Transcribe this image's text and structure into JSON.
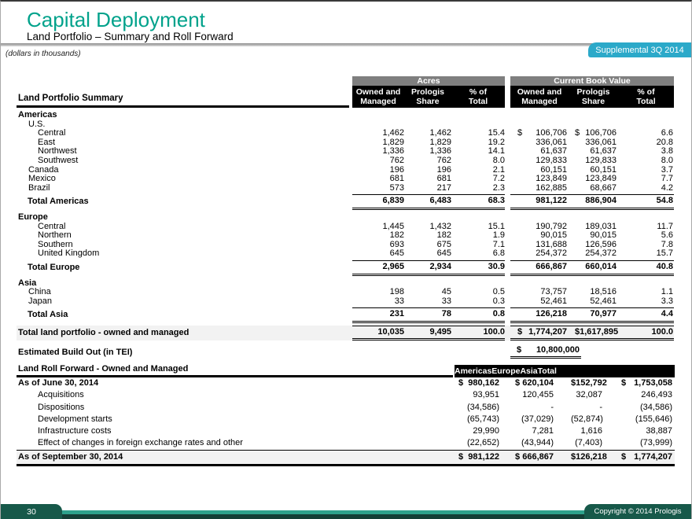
{
  "header": {
    "title": "Capital Deployment",
    "subtitle": "Land Portfolio – Summary and Roll Forward",
    "note": "(dollars in thousands)",
    "badge": "Supplemental 3Q 2014"
  },
  "colors": {
    "teal": "#00A28B",
    "badge_cyan": "#2BA9C9",
    "footer_green": "#17594A",
    "footer_line": "#2EA28C",
    "footer_strip": "#143F36",
    "header_gray": "#7F7F7F",
    "header_black": "#000000",
    "row_shade": "#F2F2F2"
  },
  "summary": {
    "section_title": "Land Portfolio Summary",
    "group_headers": {
      "acres": "Acres",
      "cbv": "Current Book Value"
    },
    "sub_headers": {
      "owned1": "Owned and",
      "owned2": "Managed",
      "share1": "Prologis",
      "share2": "Share",
      "pct1": "% of",
      "pct2": "Total"
    },
    "rows": [
      {
        "cls": "sec",
        "label": "Americas"
      },
      {
        "cls": "ind1",
        "label": "U.S."
      },
      {
        "cls": "ind2",
        "label": "Central",
        "a1": "1,462",
        "a2": "1,462",
        "a3": "15.4",
        "d1": "$",
        "c1": "106,706",
        "d2": "$",
        "c2": "106,706",
        "c3": "6.6"
      },
      {
        "cls": "ind2",
        "label": "East",
        "a1": "1,829",
        "a2": "1,829",
        "a3": "19.2",
        "c1": "336,061",
        "c2": "336,061",
        "c3": "20.8"
      },
      {
        "cls": "ind2",
        "label": "Northwest",
        "a1": "1,336",
        "a2": "1,336",
        "a3": "14.1",
        "c1": "61,637",
        "c2": "61,637",
        "c3": "3.8"
      },
      {
        "cls": "ind2",
        "label": "Southwest",
        "a1": "762",
        "a2": "762",
        "a3": "8.0",
        "c1": "129,833",
        "c2": "129,833",
        "c3": "8.0"
      },
      {
        "cls": "ind1",
        "label": "Canada",
        "a1": "196",
        "a2": "196",
        "a3": "2.1",
        "c1": "60,151",
        "c2": "60,151",
        "c3": "3.7"
      },
      {
        "cls": "ind1",
        "label": "Mexico",
        "a1": "681",
        "a2": "681",
        "a3": "7.2",
        "c1": "123,849",
        "c2": "123,849",
        "c3": "7.7"
      },
      {
        "cls": "ind1",
        "label": "Brazil",
        "a1": "573",
        "a2": "217",
        "a3": "2.3",
        "c1": "162,885",
        "c2": "68,667",
        "c3": "4.2"
      },
      {
        "cls": "total",
        "label": "Total Americas",
        "a1": "6,839",
        "a2": "6,483",
        "a3": "68.3",
        "c1": "981,122",
        "c2": "886,904",
        "c3": "54.8"
      },
      {
        "cls": "sec",
        "label": "Europe"
      },
      {
        "cls": "ind2",
        "label": "Central",
        "a1": "1,445",
        "a2": "1,432",
        "a3": "15.1",
        "c1": "190,792",
        "c2": "189,031",
        "c3": "11.7"
      },
      {
        "cls": "ind2",
        "label": "Northern",
        "a1": "182",
        "a2": "182",
        "a3": "1.9",
        "c1": "90,015",
        "c2": "90,015",
        "c3": "5.6"
      },
      {
        "cls": "ind2",
        "label": "Southern",
        "a1": "693",
        "a2": "675",
        "a3": "7.1",
        "c1": "131,688",
        "c2": "126,596",
        "c3": "7.8"
      },
      {
        "cls": "ind2",
        "label": "United Kingdom",
        "a1": "645",
        "a2": "645",
        "a3": "6.8",
        "c1": "254,372",
        "c2": "254,372",
        "c3": "15.7"
      },
      {
        "cls": "total",
        "label": "Total Europe",
        "a1": "2,965",
        "a2": "2,934",
        "a3": "30.9",
        "c1": "666,867",
        "c2": "660,014",
        "c3": "40.8"
      },
      {
        "cls": "sec",
        "label": "Asia"
      },
      {
        "cls": "ind1",
        "label": "China",
        "a1": "198",
        "a2": "45",
        "a3": "0.5",
        "c1": "73,757",
        "c2": "18,516",
        "c3": "1.1"
      },
      {
        "cls": "ind1",
        "label": "Japan",
        "a1": "33",
        "a2": "33",
        "a3": "0.3",
        "c1": "52,461",
        "c2": "52,461",
        "c3": "3.3"
      },
      {
        "cls": "total",
        "label": "Total Asia",
        "a1": "231",
        "a2": "78",
        "a3": "0.8",
        "c1": "126,218",
        "c2": "70,977",
        "c3": "4.4"
      },
      {
        "cls": "grand",
        "label": "Total land portfolio - owned and managed",
        "a1": "10,035",
        "a2": "9,495",
        "a3": "100.0",
        "d1": "$",
        "c1": "1,774,207",
        "d2": "$",
        "c2": "1,617,895",
        "c3": "100.0"
      }
    ],
    "build_out": {
      "label": "Estimated Build Out (in TEI)",
      "dollar": "$",
      "value": "10,800,000"
    }
  },
  "rollforward": {
    "section_title": "Land Roll Forward - Owned and Managed",
    "columns": [
      {
        "label": "Americas"
      },
      {
        "label": "Europe"
      },
      {
        "label": "Asia"
      },
      {
        "label": "Total"
      }
    ],
    "rows": [
      {
        "cls": "b",
        "label": "As of June 30, 2014",
        "d0": "$",
        "d1": "$",
        "d2": "$",
        "d3": "$",
        "v": [
          "980,162",
          "620,104",
          "152,792",
          "1,753,058"
        ]
      },
      {
        "cls": "ind",
        "label": "Acquisitions",
        "v": [
          "93,951",
          "120,455",
          "32,087",
          "246,493"
        ]
      },
      {
        "cls": "ind",
        "label": "Dispositions",
        "v": [
          "(34,586)",
          "-",
          "-",
          "(34,586)"
        ]
      },
      {
        "cls": "ind",
        "label": "Development starts",
        "v": [
          "(65,743)",
          "(37,029)",
          "(52,874)",
          "(155,646)"
        ]
      },
      {
        "cls": "ind",
        "label": "Infrastructure costs",
        "v": [
          "29,990",
          "7,281",
          "1,616",
          "38,887"
        ]
      },
      {
        "cls": "ind",
        "label": "Effect of changes in foreign exchange rates and other",
        "v": [
          "(22,652)",
          "(43,944)",
          "(7,403)",
          "(73,999)"
        ]
      },
      {
        "cls": "final",
        "label": "As of September 30, 2014",
        "d0": "$",
        "d1": "$",
        "d2": "$",
        "d3": "$",
        "v": [
          "981,122",
          "666,867",
          "126,218",
          "1,774,207"
        ]
      }
    ]
  },
  "footer": {
    "page": "30",
    "copyright": "Copyright © 2014 Prologis"
  }
}
